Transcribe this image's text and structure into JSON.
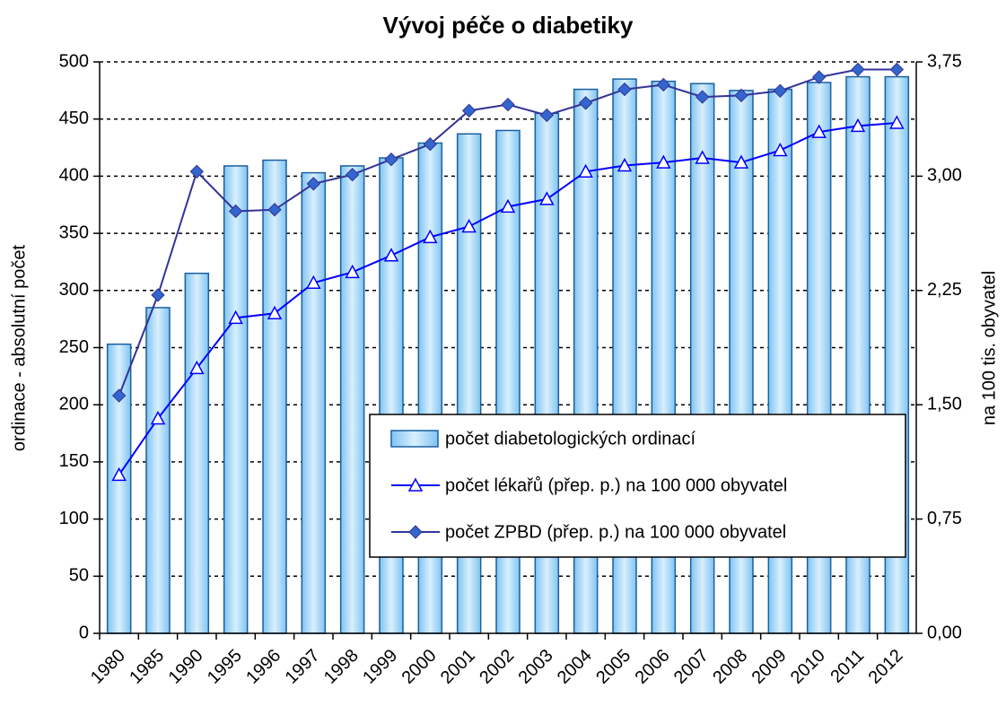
{
  "chart_data": {
    "type": "combo",
    "title": "Vývoj péče o diabetiky",
    "ylabel": "ordinace - absolutní počet",
    "y2label": "na 100 tis. obyvatel",
    "categories": [
      "1980",
      "1985",
      "1990",
      "1995",
      "1996",
      "1997",
      "1998",
      "1999",
      "2000",
      "2001",
      "2002",
      "2003",
      "2004",
      "2005",
      "2006",
      "2007",
      "2008",
      "2009",
      "2010",
      "2011",
      "2012"
    ],
    "ylim": [
      0,
      500
    ],
    "yticks": [
      0,
      50,
      100,
      150,
      200,
      250,
      300,
      350,
      400,
      450,
      500
    ],
    "y2lim": [
      0,
      3.75
    ],
    "y2ticks": [
      {
        "value": 0,
        "label": "0,00"
      },
      {
        "value": 0.75,
        "label": "0,75"
      },
      {
        "value": 1.5,
        "label": "1,50"
      },
      {
        "value": 2.25,
        "label": "2,25"
      },
      {
        "value": 3,
        "label": "3,00"
      },
      {
        "value": 3.75,
        "label": "3,75"
      }
    ],
    "grid": true,
    "legend": "lower right",
    "series": [
      {
        "name": "počet diabetologických ordinací",
        "type": "bar",
        "color": "#a8d8f8",
        "edge": "#1a5fa0",
        "values": [
          253,
          285,
          315,
          409,
          414,
          403,
          409,
          416,
          429,
          437,
          440,
          455,
          476,
          485,
          483,
          481,
          475,
          476,
          482,
          487,
          487
        ]
      },
      {
        "name": "počet lékařů (přep. p.) na 100 000 obyvatel",
        "type": "line",
        "axis": "y2",
        "color": "#0000ff",
        "marker": "triangle",
        "marker_color": "#ffffff",
        "values": [
          1.04,
          1.41,
          1.74,
          2.07,
          2.1,
          2.3,
          2.37,
          2.48,
          2.6,
          2.67,
          2.8,
          2.85,
          3.03,
          3.07,
          3.09,
          3.12,
          3.09,
          3.17,
          3.29,
          3.33,
          3.35
        ]
      },
      {
        "name": "počet ZPBD (přep. p.) na 100 000 obyvatel",
        "type": "line",
        "axis": "y2",
        "color": "#333399",
        "marker": "diamond",
        "marker_color": "#3366cc",
        "values": [
          1.56,
          2.22,
          3.03,
          2.77,
          2.78,
          2.95,
          3.01,
          3.11,
          3.21,
          3.43,
          3.47,
          3.4,
          3.48,
          3.57,
          3.6,
          3.52,
          3.53,
          3.56,
          3.65,
          3.7,
          3.7
        ]
      }
    ]
  }
}
